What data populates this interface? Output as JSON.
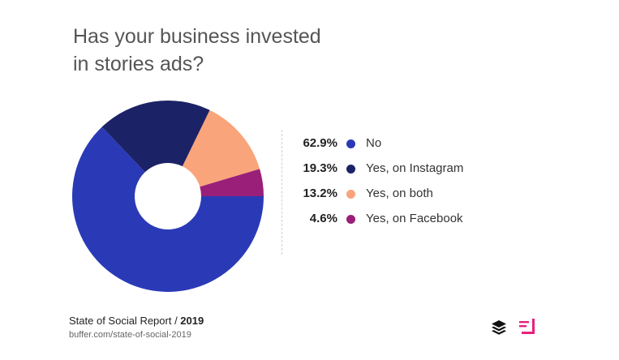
{
  "title_lines": [
    "Has your business invested",
    "in stories ads?"
  ],
  "chart_data": {
    "type": "pie",
    "title": "Has your business invested in stories ads?",
    "categories": [
      "No",
      "Yes, on Instagram",
      "Yes, on both",
      "Yes, on Facebook"
    ],
    "values": [
      62.9,
      19.3,
      13.2,
      4.6
    ],
    "value_labels": [
      "62.9%",
      "19.3%",
      "13.2%",
      "4.6%"
    ],
    "colors": [
      "#2a3ab7",
      "#1c2266",
      "#f9a47a",
      "#9a1f78"
    ],
    "legend_position": "right",
    "donut": true
  },
  "footer": {
    "report": "State of Social Report / ",
    "year": "2019",
    "url": "buffer.com/state-of-social-2019"
  },
  "icons": [
    "buffer-logo-icon",
    "pink-logo-icon"
  ]
}
